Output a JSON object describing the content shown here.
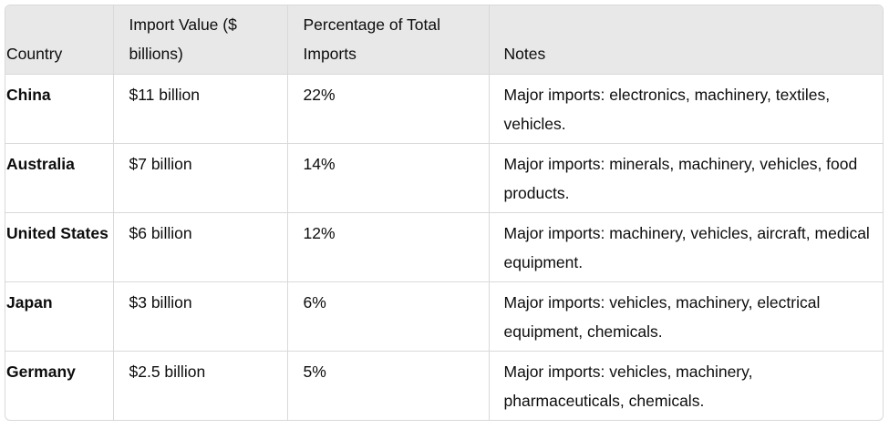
{
  "table": {
    "headers": {
      "country": "Country",
      "import_value": "Import Value ($ billions)",
      "percentage": "Percentage of Total Imports",
      "notes": "Notes"
    },
    "rows": [
      {
        "country": "China",
        "import_value": "$11 billion",
        "percentage": "22%",
        "notes": "Major imports: electronics, machinery, textiles, vehicles."
      },
      {
        "country": "Australia",
        "import_value": "$7 billion",
        "percentage": "14%",
        "notes": "Major imports: minerals, machinery, vehicles, food products."
      },
      {
        "country": "United States",
        "import_value": "$6 billion",
        "percentage": "12%",
        "notes": "Major imports: machinery, vehicles, aircraft, medical equipment."
      },
      {
        "country": "Japan",
        "import_value": "$3 billion",
        "percentage": "6%",
        "notes": "Major imports: vehicles, machinery, electrical equipment, chemicals."
      },
      {
        "country": "Germany",
        "import_value": "$2.5 billion",
        "percentage": "5%",
        "notes": "Major imports: vehicles, machinery, pharmaceuticals, chemicals."
      }
    ]
  }
}
